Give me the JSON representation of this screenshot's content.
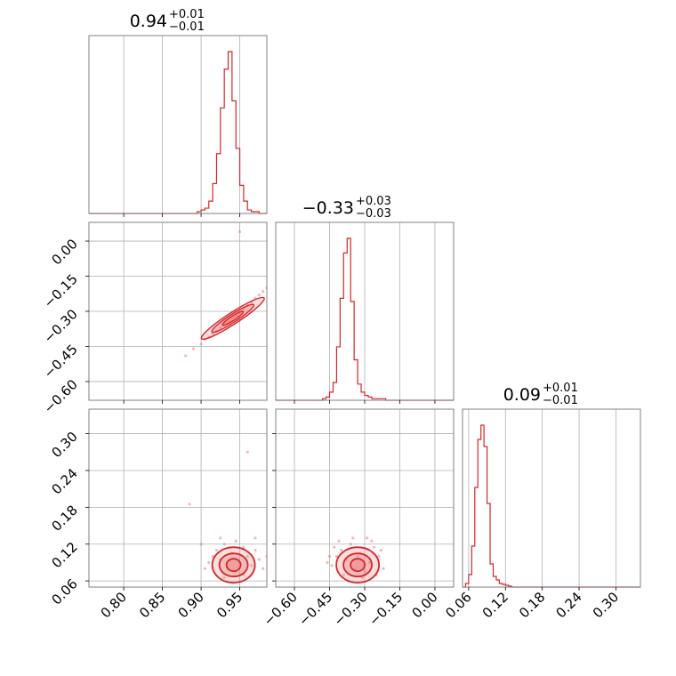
{
  "colors": {
    "series": "#d62728",
    "fill": "#e87f80",
    "grid": "#b0b0b0",
    "frame": "#808080"
  },
  "chart_data": {
    "type": "corner",
    "parameters": [
      {
        "key": "p0",
        "title_value": "0.94",
        "err_plus": "+0.01",
        "err_minus": "−0.01",
        "range": [
          0.755,
          0.985
        ],
        "ticks": [
          0.8,
          0.85,
          0.9,
          0.95
        ],
        "tick_labels": [
          "0.80",
          "0.85",
          "0.90",
          "0.95"
        ],
        "hist": {
          "bin_start": 0.895,
          "bin_width": 0.005,
          "counts": [
            0.01,
            0.02,
            0.03,
            0.07,
            0.17,
            0.34,
            0.6,
            0.82,
            0.92,
            0.64,
            0.37,
            0.16,
            0.07,
            0.02,
            0.01,
            0.01
          ]
        }
      },
      {
        "key": "p1",
        "title_value": "−0.33",
        "err_plus": "+0.03",
        "err_minus": "−0.03",
        "range": [
          -0.68,
          0.08
        ],
        "ticks": [
          -0.6,
          -0.45,
          -0.3,
          -0.15,
          0.0
        ],
        "tick_labels": [
          "−0.60",
          "−0.45",
          "−0.30",
          "−0.15",
          "0.00"
        ],
        "hist": {
          "bin_start": -0.48,
          "bin_width": 0.015,
          "counts": [
            0.01,
            0.02,
            0.05,
            0.11,
            0.33,
            0.63,
            0.91,
            1.0,
            0.61,
            0.25,
            0.1,
            0.05,
            0.03,
            0.02,
            0.01,
            0.01,
            0.01,
            0.01
          ]
        }
      },
      {
        "key": "p2",
        "title_value": "0.09",
        "err_plus": "+0.01",
        "err_minus": "−0.01",
        "range": [
          0.05,
          0.34
        ],
        "ticks": [
          0.06,
          0.12,
          0.18,
          0.24,
          0.3
        ],
        "tick_labels": [
          "0.06",
          "0.12",
          "0.18",
          "0.24",
          "0.30"
        ],
        "hist": {
          "bin_start": 0.055,
          "bin_width": 0.005,
          "counts": [
            0.02,
            0.07,
            0.23,
            0.56,
            0.83,
            0.91,
            0.79,
            0.47,
            0.13,
            0.06,
            0.04,
            0.02,
            0.015,
            0.01,
            0.005
          ]
        }
      }
    ],
    "correlations": [
      {
        "x": "p0",
        "y": "p1",
        "center": [
          0.941,
          -0.33
        ],
        "points": [
          [
            0.91,
            -0.41
          ],
          [
            0.915,
            -0.395
          ],
          [
            0.92,
            -0.385
          ],
          [
            0.925,
            -0.37
          ],
          [
            0.93,
            -0.36
          ],
          [
            0.935,
            -0.345
          ],
          [
            0.94,
            -0.33
          ],
          [
            0.945,
            -0.32
          ],
          [
            0.95,
            -0.305
          ],
          [
            0.955,
            -0.29
          ],
          [
            0.96,
            -0.275
          ],
          [
            0.965,
            -0.26
          ],
          [
            0.97,
            -0.245
          ],
          [
            0.975,
            -0.23
          ],
          [
            0.98,
            -0.215
          ],
          [
            0.985,
            -0.2
          ],
          [
            0.89,
            -0.46
          ],
          [
            0.9,
            -0.44
          ],
          [
            0.905,
            -0.42
          ],
          [
            0.88,
            -0.49
          ],
          [
            0.95,
            0.04
          ],
          [
            0.938,
            -0.34
          ],
          [
            0.943,
            -0.325
          ],
          [
            0.947,
            -0.318
          ],
          [
            0.932,
            -0.35
          ]
        ]
      },
      {
        "x": "p0",
        "y": "p2",
        "center": [
          0.942,
          0.086
        ],
        "points": [
          [
            0.915,
            0.1
          ],
          [
            0.92,
            0.11
          ],
          [
            0.925,
            0.095
          ],
          [
            0.93,
            0.12
          ],
          [
            0.935,
            0.08
          ],
          [
            0.94,
            0.105
          ],
          [
            0.945,
            0.075
          ],
          [
            0.95,
            0.09
          ],
          [
            0.955,
            0.115
          ],
          [
            0.96,
            0.1
          ],
          [
            0.965,
            0.085
          ],
          [
            0.97,
            0.11
          ],
          [
            0.975,
            0.095
          ],
          [
            0.98,
            0.08
          ],
          [
            0.91,
            0.09
          ],
          [
            0.9,
            0.12
          ],
          [
            0.885,
            0.185
          ],
          [
            0.96,
            0.27
          ],
          [
            0.97,
            0.13
          ],
          [
            0.93,
            0.065
          ],
          [
            0.945,
            0.125
          ],
          [
            0.955,
            0.07
          ],
          [
            0.925,
            0.13
          ],
          [
            0.905,
            0.08
          ],
          [
            0.985,
            0.1
          ]
        ]
      },
      {
        "x": "p1",
        "y": "p2",
        "center": [
          -0.33,
          0.086
        ],
        "points": [
          [
            -0.42,
            0.1
          ],
          [
            -0.4,
            0.11
          ],
          [
            -0.38,
            0.095
          ],
          [
            -0.36,
            0.12
          ],
          [
            -0.34,
            0.08
          ],
          [
            -0.32,
            0.105
          ],
          [
            -0.3,
            0.075
          ],
          [
            -0.28,
            0.09
          ],
          [
            -0.26,
            0.115
          ],
          [
            -0.24,
            0.1
          ],
          [
            -0.44,
            0.085
          ],
          [
            -0.46,
            0.09
          ],
          [
            -0.22,
            0.08
          ],
          [
            -0.35,
            0.13
          ],
          [
            -0.31,
            0.065
          ],
          [
            -0.39,
            0.07
          ],
          [
            -0.27,
            0.125
          ],
          [
            -0.43,
            0.115
          ],
          [
            -0.25,
            0.07
          ],
          [
            -0.37,
            0.06
          ],
          [
            -0.29,
            0.13
          ],
          [
            -0.33,
            0.1
          ],
          [
            -0.41,
            0.125
          ],
          [
            -0.23,
            0.11
          ],
          [
            -0.45,
            0.1
          ]
        ]
      }
    ]
  }
}
